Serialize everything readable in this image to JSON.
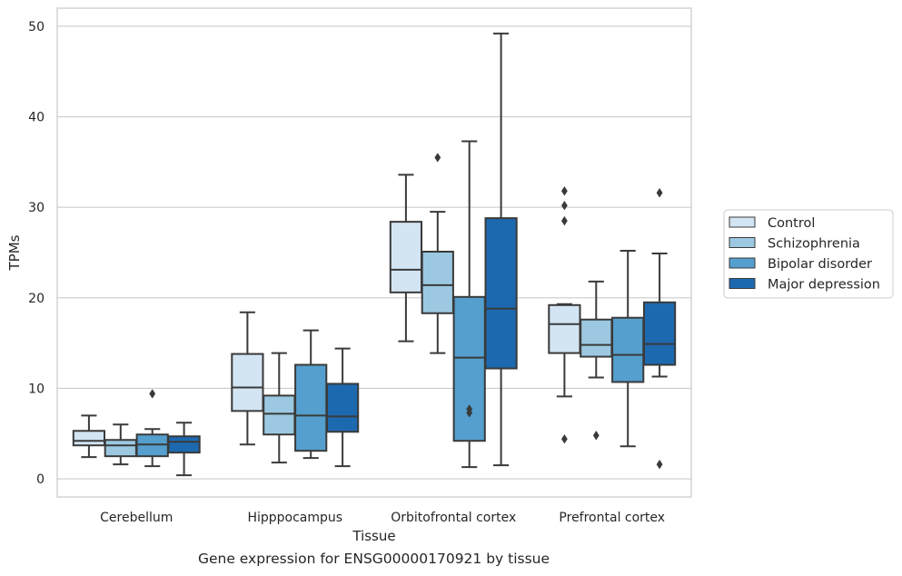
{
  "caption": "Gene expression for ENSG00000170921 by tissue",
  "chart_data": {
    "type": "boxplot",
    "xlabel": "Tissue",
    "ylabel": "TPMs",
    "ylim": [
      -2,
      52
    ],
    "yticks": [
      0,
      10,
      20,
      30,
      40,
      50
    ],
    "grid": true,
    "legend_position": "right",
    "categories": [
      "Cerebellum",
      "Hipppocampus",
      "Orbitofrontal cortex",
      "Prefrontal cortex"
    ],
    "series": [
      {
        "name": "Control",
        "color": "#d3e4f3",
        "boxes": [
          {
            "whisker_low": 2.4,
            "q1": 3.7,
            "median": 4.2,
            "q3": 5.3,
            "whisker_high": 7.0,
            "outliers": []
          },
          {
            "whisker_low": 3.8,
            "q1": 7.5,
            "median": 10.1,
            "q3": 13.8,
            "whisker_high": 18.4,
            "outliers": []
          },
          {
            "whisker_low": 15.2,
            "q1": 20.6,
            "median": 23.1,
            "q3": 28.4,
            "whisker_high": 33.6,
            "outliers": []
          },
          {
            "whisker_low": 9.1,
            "q1": 13.9,
            "median": 17.1,
            "q3": 19.2,
            "whisker_high": 19.3,
            "outliers": [
              4.4,
              28.5,
              30.2,
              31.8
            ]
          }
        ]
      },
      {
        "name": "Schizophrenia",
        "color": "#9cc9e1",
        "boxes": [
          {
            "whisker_low": 1.6,
            "q1": 2.5,
            "median": 3.7,
            "q3": 4.3,
            "whisker_high": 6.0,
            "outliers": []
          },
          {
            "whisker_low": 1.8,
            "q1": 4.9,
            "median": 7.2,
            "q3": 9.2,
            "whisker_high": 13.9,
            "outliers": []
          },
          {
            "whisker_low": 13.9,
            "q1": 18.3,
            "median": 21.4,
            "q3": 25.1,
            "whisker_high": 29.5,
            "outliers": [
              35.5
            ]
          },
          {
            "whisker_low": 11.2,
            "q1": 13.5,
            "median": 14.8,
            "q3": 17.6,
            "whisker_high": 21.8,
            "outliers": [
              4.8
            ]
          }
        ]
      },
      {
        "name": "Bipolar disorder",
        "color": "#549fcd",
        "boxes": [
          {
            "whisker_low": 1.4,
            "q1": 2.5,
            "median": 3.8,
            "q3": 4.9,
            "whisker_high": 5.5,
            "outliers": [
              9.4
            ]
          },
          {
            "whisker_low": 2.3,
            "q1": 3.1,
            "median": 7.0,
            "q3": 12.6,
            "whisker_high": 16.4,
            "outliers": []
          },
          {
            "whisker_low": 1.3,
            "q1": 4.2,
            "median": 13.4,
            "q3": 20.1,
            "whisker_high": 37.3,
            "outliers": [
              7.3,
              7.7
            ]
          },
          {
            "whisker_low": 3.6,
            "q1": 10.7,
            "median": 13.7,
            "q3": 17.8,
            "whisker_high": 25.2,
            "outliers": []
          }
        ]
      },
      {
        "name": "Major depression",
        "color": "#1d69b0",
        "boxes": [
          {
            "whisker_low": 0.4,
            "q1": 2.9,
            "median": 4.1,
            "q3": 4.7,
            "whisker_high": 6.2,
            "outliers": []
          },
          {
            "whisker_low": 1.4,
            "q1": 5.2,
            "median": 6.9,
            "q3": 10.5,
            "whisker_high": 14.4,
            "outliers": []
          },
          {
            "whisker_low": 1.5,
            "q1": 12.2,
            "median": 18.8,
            "q3": 28.8,
            "whisker_high": 49.2,
            "outliers": []
          },
          {
            "whisker_low": 11.3,
            "q1": 12.6,
            "median": 14.9,
            "q3": 19.5,
            "whisker_high": 24.9,
            "outliers": [
              1.6,
              31.6
            ]
          }
        ]
      }
    ]
  }
}
